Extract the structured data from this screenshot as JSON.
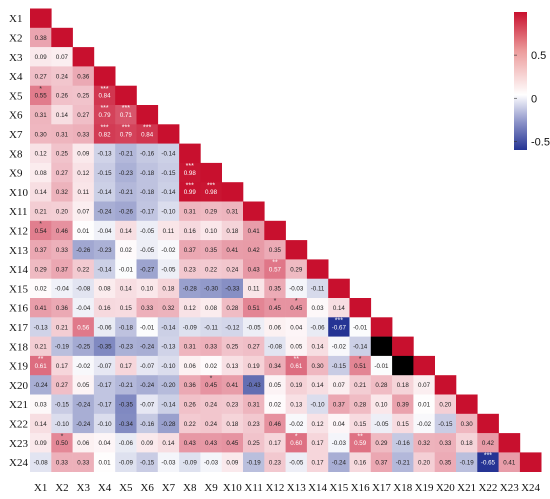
{
  "chart_data": {
    "type": "heatmap",
    "title": "",
    "variables": [
      "X1",
      "X2",
      "X3",
      "X4",
      "X5",
      "X6",
      "X7",
      "X8",
      "X9",
      "X10",
      "X11",
      "X12",
      "X13",
      "X14",
      "X15",
      "X16",
      "X17",
      "X18",
      "X19",
      "X20",
      "X21",
      "X22",
      "X23",
      "X24"
    ],
    "color_scale": {
      "min": -0.6,
      "max": 1.0,
      "low_color": "#253494",
      "mid_color": "#ffffff",
      "high_color": "#c8102e"
    },
    "colorbar_ticks": [
      "0.5",
      "0",
      "-0.5"
    ],
    "colorbar_tick_values": [
      0.5,
      0,
      -0.5
    ],
    "lower_triangle": [
      [],
      [
        "0.38"
      ],
      [
        "0.09",
        "0.07"
      ],
      [
        "0.27",
        "0.24",
        "0.36"
      ],
      [
        "0.55",
        "0.26",
        "0.25",
        "0.84"
      ],
      [
        "0.31",
        "0.14",
        "0.27",
        "0.79",
        "0.71"
      ],
      [
        "0.30",
        "0.31",
        "0.33",
        "0.82",
        "0.79",
        "0.84"
      ],
      [
        "0.12",
        "0.25",
        "0.09",
        "-0.13",
        "-0.21",
        "-0.16",
        "-0.14"
      ],
      [
        "0.08",
        "0.27",
        "0.12",
        "-0.15",
        "-0.23",
        "-0.18",
        "-0.15",
        "0.98"
      ],
      [
        "0.14",
        "0.32",
        "0.11",
        "-0.14",
        "-0.21",
        "-0.18",
        "-0.14",
        "0.99",
        "0.98"
      ],
      [
        "0.21",
        "0.20",
        "0.07",
        "-0.24",
        "-0.26",
        "-0.17",
        "-0.10",
        "0.31",
        "0.29",
        "0.31"
      ],
      [
        "0.54",
        "0.46",
        "0.01",
        "-0.04",
        "0.14",
        "-0.05",
        "0.11",
        "0.16",
        "0.10",
        "0.18",
        "0.41"
      ],
      [
        "0.37",
        "0.33",
        "-0.26",
        "-0.23",
        "0.02",
        "-0.05",
        "-0.02",
        "0.37",
        "0.35",
        "0.41",
        "0.42",
        "0.35"
      ],
      [
        "0.29",
        "0.37",
        "0.22",
        "-0.14",
        "-0.01",
        "-0.27",
        "-0.05",
        "0.23",
        "0.22",
        "0.24",
        "0.43",
        "0.57",
        "0.29"
      ],
      [
        "0.02",
        "-0.04",
        "-0.08",
        "0.08",
        "0.14",
        "0.10",
        "0.18",
        "-0.28",
        "-0.30",
        "-0.33",
        "0.11",
        "0.35",
        "-0.03",
        "-0.11"
      ],
      [
        "0.41",
        "0.36",
        "-0.04",
        "0.16",
        "0.15",
        "0.33",
        "0.32",
        "0.12",
        "0.08",
        "0.28",
        "0.51",
        "0.45",
        "0.45",
        "0.03",
        "0.14"
      ],
      [
        "-0.13",
        "0.21",
        "0.56",
        "-0.06",
        "-0.18",
        "-0.01",
        "-0.14",
        "-0.09",
        "-0.11",
        "-0.12",
        "-0.05",
        "0.06",
        "0.04",
        "-0.06",
        "-0.67",
        "-0.01"
      ],
      [
        "0.21",
        "-0.19",
        "-0.25",
        "-0.35",
        "-0.23",
        "-0.24",
        "-0.13",
        "0.31",
        "0.33",
        "0.25",
        "0.27",
        "-0.08",
        "0.05",
        "0.14",
        "-0.02",
        "-0.14"
      ],
      [
        "0.61",
        "0.17",
        "-0.02",
        "-0.07",
        "0.17",
        "-0.07",
        "-0.10",
        "0.06",
        "0.02",
        "0.13",
        "0.19",
        "0.34",
        "0.61",
        "0.30",
        "-0.15",
        "0.51",
        "-0.01"
      ],
      [
        "-0.24",
        "0.27",
        "0.05",
        "-0.17",
        "-0.21",
        "-0.24",
        "-0.20",
        "0.36",
        "0.45",
        "0.41",
        "-0.43",
        "0.05",
        "0.19",
        "0.14",
        "0.07",
        "0.21",
        "0.28",
        "0.18",
        "0.07"
      ],
      [
        "0.03",
        "-0.15",
        "-0.24",
        "-0.17",
        "-0.35",
        "-0.07",
        "-0.14",
        "0.26",
        "0.24",
        "0.23",
        "0.31",
        "0.02",
        "0.13",
        "-0.10",
        "0.37",
        "0.28",
        "0.10",
        "0.39",
        "0.01",
        "0.20"
      ],
      [
        "0.14",
        "-0.10",
        "-0.24",
        "-0.10",
        "-0.34",
        "-0.16",
        "-0.28",
        "0.22",
        "0.24",
        "0.18",
        "0.23",
        "0.46",
        "-0.02",
        "0.12",
        "0.04",
        "0.15",
        "-0.05",
        "0.15",
        "-0.02",
        "-0.15",
        "0.30"
      ],
      [
        "0.09",
        "0.50",
        "0.06",
        "0.04",
        "-0.06",
        "0.09",
        "0.14",
        "0.43",
        "0.43",
        "0.45",
        "0.25",
        "0.17",
        "0.60",
        "0.17",
        "-0.03",
        "0.59",
        "0.29",
        "-0.16",
        "0.32",
        "0.33",
        "0.18",
        "0.42"
      ],
      [
        "-0.08",
        "0.33",
        "0.33",
        "0.01",
        "-0.09",
        "-0.15",
        "-0.03",
        "-0.09",
        "-0.03",
        "0.09",
        "-0.19",
        "0.23",
        "-0.05",
        "0.17",
        "-0.24",
        "0.16",
        "0.37",
        "-0.21",
        "0.20",
        "0.35",
        "-0.19",
        "-0.65",
        "0.41"
      ]
    ],
    "stars": {
      "4,0": "*",
      "4,3": "***",
      "5,3": "***",
      "5,4": "***",
      "6,3": "***",
      "6,4": "***",
      "6,5": "***",
      "8,7": "***",
      "9,7": "***",
      "9,8": "***",
      "11,0": "*",
      "13,11": "**",
      "15,11": "*",
      "15,12": "*",
      "16,14": "***",
      "18,0": "**",
      "18,12": "**",
      "18,15": "*",
      "19,8": "*",
      "22,1": "*",
      "22,12": "*",
      "22,15": "**",
      "23,21": "***"
    }
  }
}
